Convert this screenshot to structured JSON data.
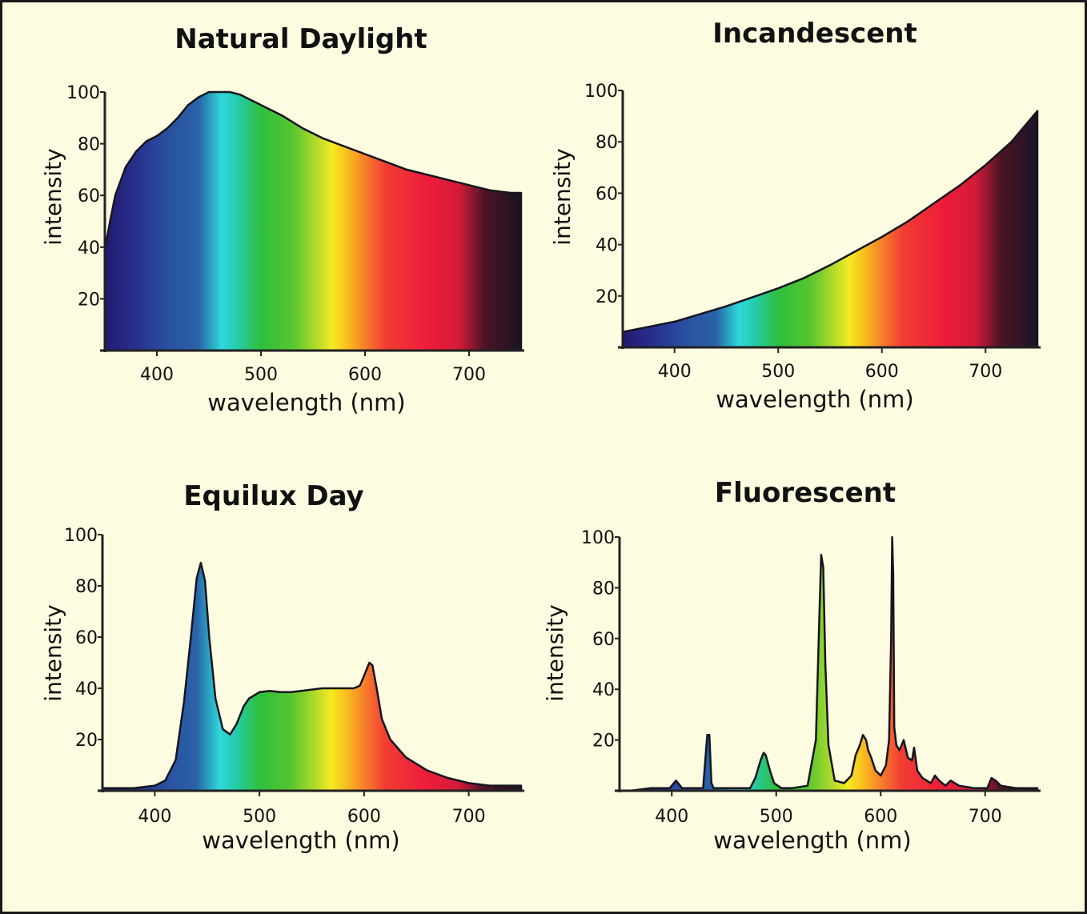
{
  "chart_data": [
    {
      "type": "area",
      "title": "Natural Daylight",
      "xlabel": "wavelength (nm)",
      "ylabel": "intensity",
      "xlim": [
        350,
        750
      ],
      "ylim": [
        0,
        100
      ],
      "xticks": [
        "400",
        "500",
        "600",
        "700"
      ],
      "yticks": [
        "20",
        "40",
        "60",
        "80",
        "100"
      ],
      "x": [
        350,
        355,
        360,
        370,
        380,
        390,
        400,
        410,
        420,
        430,
        440,
        450,
        460,
        470,
        480,
        490,
        500,
        520,
        540,
        560,
        580,
        600,
        620,
        640,
        660,
        680,
        700,
        720,
        740,
        750
      ],
      "y": [
        39,
        50,
        60,
        71,
        77,
        81,
        83,
        86,
        90,
        95,
        98,
        100,
        100,
        100,
        99,
        97,
        95,
        91,
        86,
        82,
        79,
        76,
        73,
        70,
        68,
        66,
        64,
        62,
        61,
        61
      ]
    },
    {
      "type": "area",
      "title": "Incandescent",
      "xlabel": "wavelength (nm)",
      "ylabel": "intensity",
      "xlim": [
        350,
        750
      ],
      "ylim": [
        0,
        100
      ],
      "xticks": [
        "400",
        "500",
        "600",
        "700"
      ],
      "yticks": [
        "20",
        "40",
        "60",
        "80",
        "100"
      ],
      "x": [
        350,
        375,
        400,
        425,
        450,
        475,
        500,
        525,
        550,
        575,
        600,
        625,
        650,
        675,
        700,
        725,
        750
      ],
      "y": [
        6,
        8,
        10,
        13,
        16,
        19.5,
        23,
        27,
        32,
        37.5,
        43,
        49,
        56,
        63,
        71,
        80,
        92
      ]
    },
    {
      "type": "area",
      "title": "Equilux Day",
      "xlabel": "wavelength (nm)",
      "ylabel": "intensity",
      "xlim": [
        350,
        750
      ],
      "ylim": [
        0,
        100
      ],
      "xticks": [
        "400",
        "500",
        "600",
        "700"
      ],
      "yticks": [
        "20",
        "40",
        "60",
        "80",
        "100"
      ],
      "x": [
        350,
        380,
        400,
        410,
        420,
        428,
        435,
        440,
        444,
        448,
        452,
        458,
        465,
        472,
        478,
        485,
        490,
        500,
        510,
        520,
        530,
        540,
        550,
        560,
        570,
        580,
        590,
        596,
        601,
        605,
        608,
        612,
        617,
        625,
        640,
        660,
        680,
        700,
        720,
        750
      ],
      "y": [
        1,
        1,
        2,
        4,
        12,
        35,
        62,
        83,
        89,
        82,
        60,
        36,
        24,
        22,
        26,
        33,
        36,
        38.5,
        39,
        38.5,
        38.5,
        39,
        39.5,
        40,
        40,
        40,
        40,
        41,
        46,
        50,
        49,
        40,
        28,
        20,
        13,
        8,
        5,
        3,
        2,
        2
      ]
    },
    {
      "type": "area",
      "title": "Fluorescent",
      "xlabel": "wavelength (nm)",
      "ylabel": "intensity",
      "xlim": [
        350,
        750
      ],
      "ylim": [
        0,
        100
      ],
      "xticks": [
        "400",
        "500",
        "600",
        "700"
      ],
      "yticks": [
        "20",
        "40",
        "60",
        "80",
        "100"
      ],
      "x": [
        350,
        360,
        380,
        398,
        404,
        410,
        420,
        430,
        434,
        436,
        438,
        440,
        460,
        475,
        480,
        485,
        488,
        490,
        494,
        498,
        505,
        515,
        530,
        538,
        541,
        543,
        545,
        547,
        550,
        556,
        565,
        572,
        576,
        580,
        583,
        586,
        588,
        591,
        595,
        600,
        605,
        608,
        610,
        611,
        612,
        613,
        615,
        618,
        622,
        626,
        630,
        632,
        635,
        640,
        648,
        652,
        656,
        662,
        667,
        675,
        690,
        702,
        706,
        710,
        715,
        730,
        750
      ],
      "y": [
        0,
        0,
        1,
        1,
        4,
        1,
        1,
        1,
        22,
        22,
        3,
        1,
        1,
        1,
        5,
        12,
        15,
        14,
        8,
        3,
        1,
        1,
        2,
        20,
        65,
        93,
        88,
        50,
        18,
        4,
        3,
        6,
        14,
        18,
        22,
        20,
        16,
        13,
        8,
        6,
        10,
        20,
        60,
        100,
        85,
        25,
        18,
        16,
        20,
        13,
        12,
        17,
        8,
        5,
        3,
        6,
        4,
        2,
        4,
        2,
        1,
        1,
        5,
        4,
        2,
        1,
        1
      ]
    }
  ]
}
